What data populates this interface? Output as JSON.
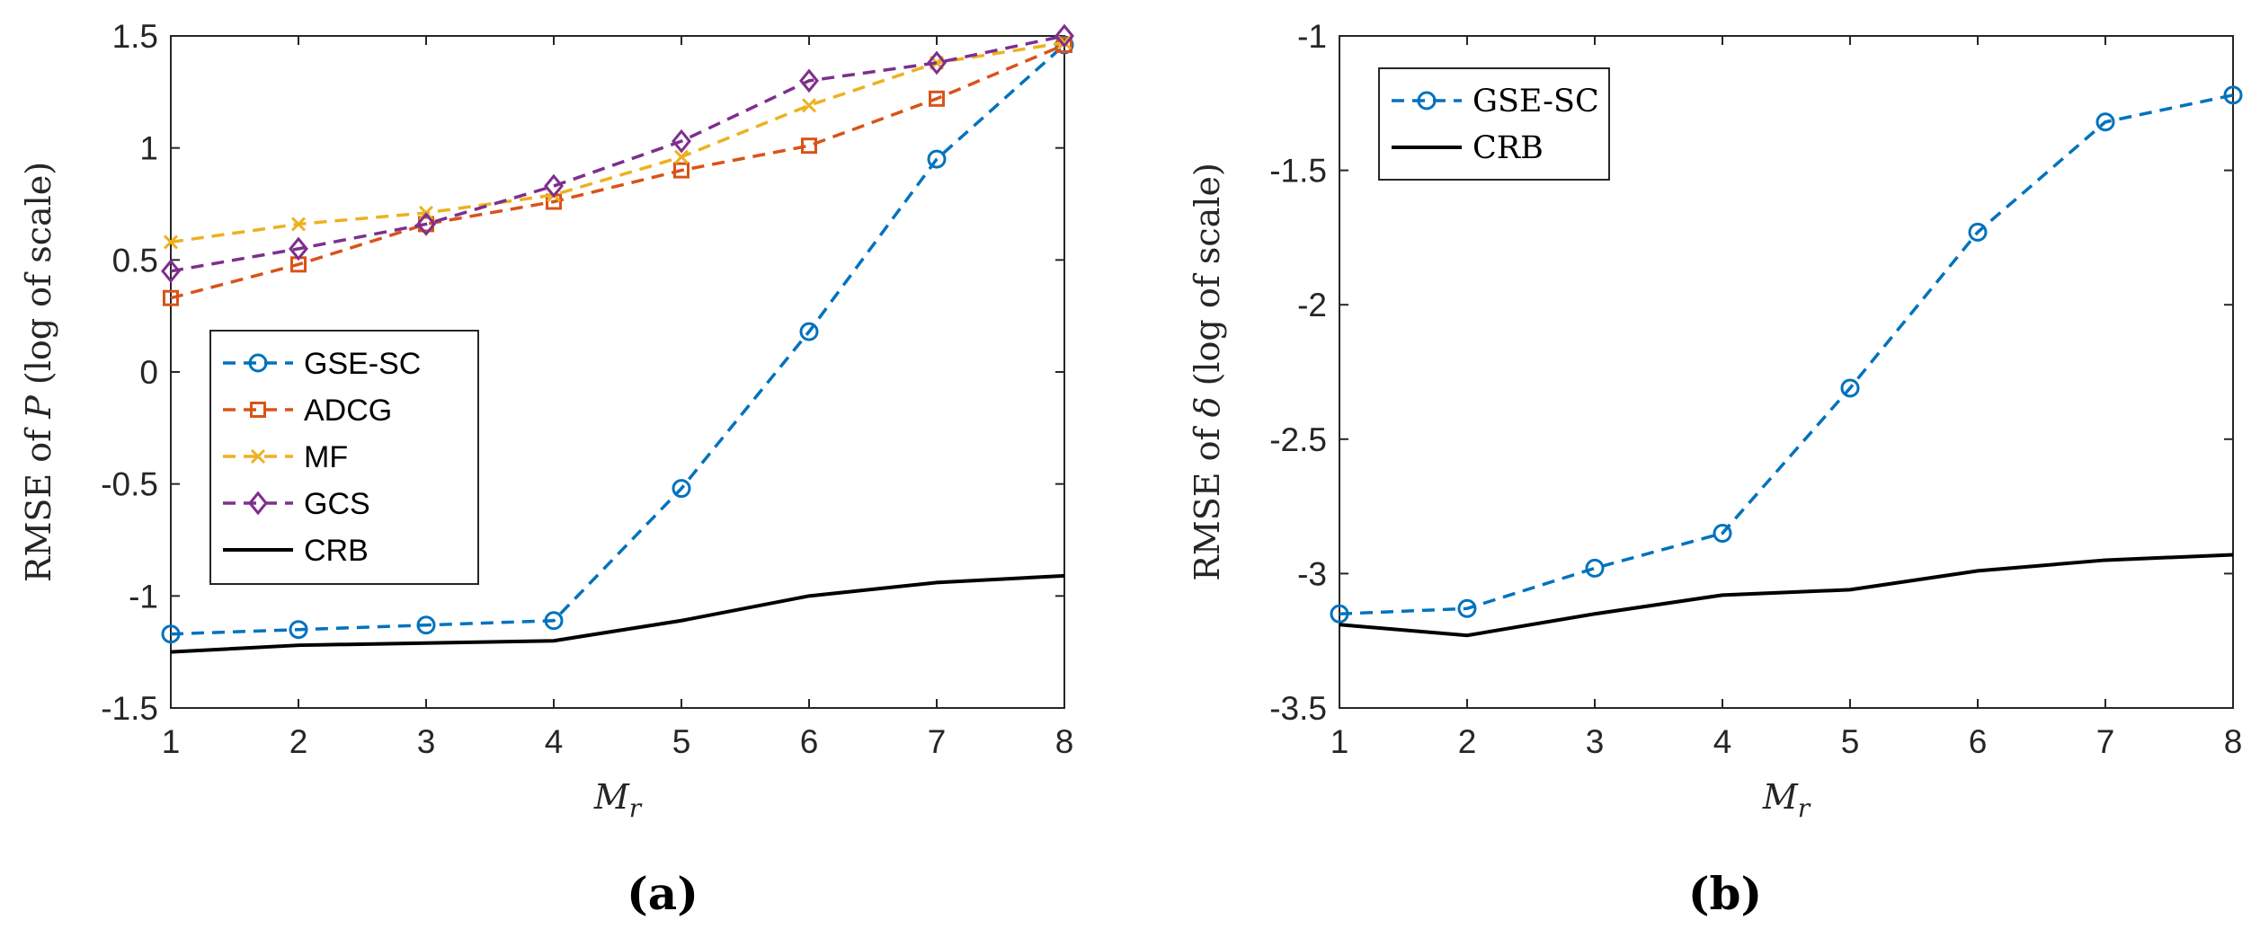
{
  "colors": {
    "GSE-SC": "#0072BD",
    "ADCG": "#D95319",
    "MF": "#EDB120",
    "GCS": "#7E2F8E",
    "CRB": "#000000",
    "axis": "#262626"
  },
  "chart_data": [
    {
      "type": "line",
      "panel_label": "(a)",
      "title": "",
      "ylabel_parts": {
        "prefix": "RMSE of ",
        "symbol": "P",
        "suffix": " (log of scale)"
      },
      "xlabel_parts": {
        "symbol": "M",
        "subscript": "r"
      },
      "x": [
        1,
        2,
        3,
        4,
        5,
        6,
        7,
        8
      ],
      "xlim": [
        1,
        8
      ],
      "ylim": [
        -1.5,
        1.5
      ],
      "xticks": [
        1,
        2,
        3,
        4,
        5,
        6,
        7,
        8
      ],
      "xtick_labels": [
        "1",
        "2",
        "3",
        "4",
        "5",
        "6",
        "7",
        "8"
      ],
      "yticks": [
        -1.5,
        -1,
        -0.5,
        0,
        0.5,
        1,
        1.5
      ],
      "ytick_labels": [
        "-1.5",
        "-1",
        "-0.5",
        "0",
        "0.5",
        "1",
        "1.5"
      ],
      "grid": false,
      "legend_location": "lower-left",
      "legend_font": "sans",
      "series": [
        {
          "name": "GSE-SC",
          "marker": "circle",
          "dashed": true,
          "values": [
            -1.17,
            -1.15,
            -1.13,
            -1.11,
            -0.52,
            0.18,
            0.95,
            1.46
          ]
        },
        {
          "name": "ADCG",
          "marker": "square",
          "dashed": true,
          "values": [
            0.33,
            0.48,
            0.66,
            0.76,
            0.9,
            1.01,
            1.22,
            1.46
          ]
        },
        {
          "name": "MF",
          "marker": "x",
          "dashed": true,
          "values": [
            0.58,
            0.66,
            0.71,
            0.79,
            0.96,
            1.19,
            1.38,
            1.47
          ]
        },
        {
          "name": "GCS",
          "marker": "diamond",
          "dashed": true,
          "values": [
            0.45,
            0.55,
            0.66,
            0.83,
            1.03,
            1.3,
            1.38,
            1.5
          ]
        },
        {
          "name": "CRB",
          "marker": "none",
          "dashed": false,
          "values": [
            -1.25,
            -1.22,
            -1.21,
            -1.2,
            -1.11,
            -1.0,
            -0.94,
            -0.91
          ]
        }
      ]
    },
    {
      "type": "line",
      "panel_label": "(b)",
      "title": "",
      "ylabel_parts": {
        "prefix": "RMSE of ",
        "symbol": "δ",
        "suffix": " (log of scale)"
      },
      "xlabel_parts": {
        "symbol": "M",
        "subscript": "r"
      },
      "x": [
        1,
        2,
        3,
        4,
        5,
        6,
        7,
        8
      ],
      "xlim": [
        1,
        8
      ],
      "ylim": [
        -3.5,
        -1
      ],
      "xticks": [
        1,
        2,
        3,
        4,
        5,
        6,
        7,
        8
      ],
      "xtick_labels": [
        "1",
        "2",
        "3",
        "4",
        "5",
        "6",
        "7",
        "8"
      ],
      "yticks": [
        -3.5,
        -3,
        -2.5,
        -2,
        -1.5,
        -1
      ],
      "ytick_labels": [
        "-3.5",
        "-3",
        "-2.5",
        "-2",
        "-1.5",
        "-1"
      ],
      "grid": false,
      "legend_location": "top-left",
      "legend_font": "serif",
      "series": [
        {
          "name": "GSE-SC",
          "marker": "circle",
          "dashed": true,
          "values": [
            -3.15,
            -3.13,
            -2.98,
            -2.85,
            -2.31,
            -1.73,
            -1.32,
            -1.22
          ]
        },
        {
          "name": "CRB",
          "marker": "none",
          "dashed": false,
          "values": [
            -3.19,
            -3.23,
            -3.15,
            -3.08,
            -3.06,
            -2.99,
            -2.95,
            -2.93
          ]
        }
      ]
    }
  ]
}
